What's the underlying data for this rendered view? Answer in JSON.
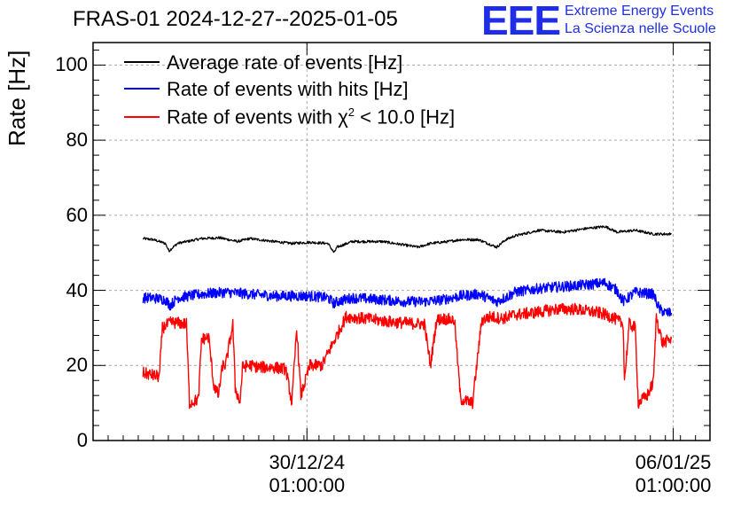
{
  "header": {
    "title": "FRAS-01 2024-12-27--2025-01-05",
    "logo_text": "EEE",
    "logo_line1": "Extreme Energy Events",
    "logo_line2": "La Scienza nelle Scuole"
  },
  "colors": {
    "average": "#000000",
    "hits": "#0000ff",
    "chi2": "#ff0000",
    "logo": "#1f2ee6",
    "grid": "#aaaaaa"
  },
  "chart_data": {
    "type": "line",
    "title": "FRAS-01 2024-12-27--2025-01-05",
    "xlabel": "",
    "ylabel": "Rate [Hz]",
    "ylim": [
      0,
      106
    ],
    "yticks": [
      0,
      20,
      40,
      60,
      80,
      100
    ],
    "xlim_days": [
      0,
      10.24
    ],
    "xticks": [
      {
        "day": 3.55,
        "date": "30/12/24",
        "time": "01:00:00"
      },
      {
        "day": 9.63,
        "date": "06/01/25",
        "time": "01:00:00"
      }
    ],
    "grid": true,
    "legend_position": "top-left",
    "series": [
      {
        "name": "Average rate of events [Hz]",
        "label_prefix": "Average rate of events [Hz]",
        "color": "#000000",
        "x": [
          0.83,
          1.0,
          1.2,
          1.26,
          1.4,
          1.8,
          2.1,
          2.4,
          2.6,
          3.0,
          3.3,
          3.6,
          3.9,
          4.0,
          4.05,
          4.3,
          4.8,
          5.2,
          5.4,
          5.6,
          5.9,
          6.1,
          6.4,
          6.7,
          6.85,
          7.0,
          7.4,
          7.8,
          8.2,
          8.5,
          8.7,
          9.0,
          9.3,
          9.6
        ],
        "values": [
          53.8,
          53.5,
          52.5,
          50.5,
          52.5,
          53.8,
          54.0,
          53.0,
          53.8,
          53.0,
          52.5,
          52.8,
          52.5,
          50.0,
          51.5,
          53.0,
          53.0,
          52.0,
          51.5,
          52.5,
          53.0,
          53.5,
          53.5,
          51.5,
          53.5,
          54.5,
          56.0,
          55.5,
          56.5,
          57.0,
          55.5,
          56.0,
          55.0,
          55.0
        ]
      },
      {
        "name": "Rate of events with hits [Hz]",
        "label_prefix": "Rate of events with hits [Hz]",
        "color": "#0000ff",
        "x": [
          0.83,
          1.0,
          1.2,
          1.28,
          1.4,
          1.8,
          2.2,
          2.6,
          3.0,
          3.3,
          3.6,
          3.9,
          4.0,
          4.05,
          4.3,
          4.8,
          5.2,
          5.5,
          5.8,
          6.1,
          6.4,
          6.7,
          6.9,
          7.0,
          7.4,
          7.8,
          8.2,
          8.5,
          8.7,
          8.8,
          9.0,
          9.3,
          9.4,
          9.5,
          9.6
        ],
        "values": [
          38.0,
          38.0,
          37.5,
          36.0,
          38.0,
          39.0,
          39.5,
          39.0,
          38.5,
          38.5,
          38.5,
          38.0,
          36.5,
          37.0,
          38.0,
          37.5,
          37.0,
          37.0,
          37.5,
          38.5,
          39.0,
          37.0,
          38.5,
          39.5,
          40.5,
          41.0,
          41.5,
          42.0,
          40.0,
          37.0,
          39.5,
          39.0,
          35.0,
          34.0,
          34.0
        ]
      },
      {
        "name": "Rate of events with chi2 < 10.0 [Hz]",
        "label_prefix": "Rate of events with χ",
        "label_sup": "2",
        "label_suffix": " < 10.0 [Hz]",
        "color": "#ff0000",
        "x": [
          0.83,
          1.1,
          1.15,
          1.3,
          1.55,
          1.6,
          1.75,
          1.8,
          1.92,
          2.0,
          2.08,
          2.15,
          2.2,
          2.32,
          2.36,
          2.44,
          2.48,
          2.56,
          2.62,
          2.75,
          2.8,
          3.0,
          3.2,
          3.3,
          3.38,
          3.45,
          3.6,
          3.8,
          4.2,
          4.5,
          5.0,
          5.5,
          5.6,
          5.7,
          5.8,
          6.0,
          6.1,
          6.3,
          6.45,
          6.6,
          6.8,
          7.0,
          7.3,
          7.7,
          8.0,
          8.4,
          8.6,
          8.8,
          8.82,
          8.9,
          9.0,
          9.05,
          9.2,
          9.3,
          9.35,
          9.45,
          9.6
        ],
        "values": [
          18.0,
          17.0,
          30.0,
          31.5,
          31.0,
          10.0,
          11.0,
          27.0,
          27.5,
          15.0,
          12.0,
          20.0,
          20.0,
          31.0,
          14.0,
          10.0,
          19.5,
          20.0,
          20.0,
          19.5,
          19.5,
          19.5,
          19.0,
          10.0,
          30.0,
          12.0,
          20.0,
          20.0,
          33.0,
          32.5,
          31.5,
          31.0,
          20.0,
          32.0,
          32.5,
          32.0,
          11.0,
          10.0,
          32.0,
          33.0,
          32.5,
          33.5,
          34.0,
          35.0,
          35.0,
          34.0,
          33.0,
          31.0,
          16.0,
          31.0,
          30.0,
          10.0,
          12.0,
          15.5,
          33.0,
          26.0,
          27.0
        ]
      }
    ]
  }
}
